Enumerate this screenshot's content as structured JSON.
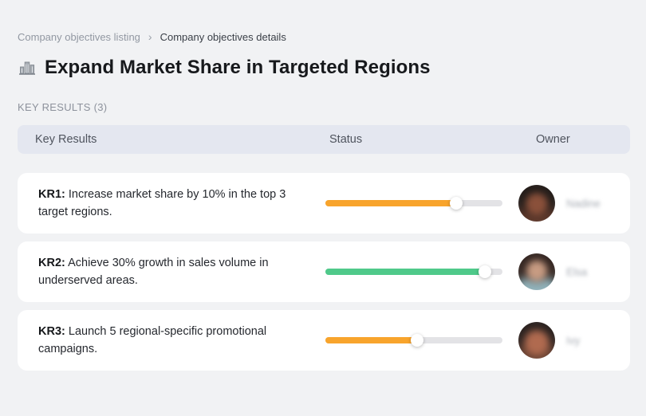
{
  "breadcrumb": {
    "separator": "›",
    "items": [
      {
        "label": "Company objectives listing"
      },
      {
        "label": "Company objectives details"
      }
    ]
  },
  "header": {
    "icon": "buildings-icon",
    "title": "Expand Market Share in Targeted Regions"
  },
  "section": {
    "label": "KEY RESULTS (3)"
  },
  "table": {
    "columns": [
      "Key Results",
      "Status",
      "Owner"
    ],
    "rows": [
      {
        "kr_label": "KR1:",
        "kr_text": "Increase market share by 10% in the top 3 target regions.",
        "progress_percent": 74,
        "progress_color": "#F8A42C",
        "owner_name": "Nadine"
      },
      {
        "kr_label": "KR2:",
        "kr_text": "Achieve 30% growth in sales volume in underserved areas.",
        "progress_percent": 90,
        "progress_color": "#4FC98A",
        "owner_name": "Elsa"
      },
      {
        "kr_label": "KR3:",
        "kr_text": "Launch 5 regional-specific promotional campaigns.",
        "progress_percent": 52,
        "progress_color": "#F8A42C",
        "owner_name": "Ivy"
      }
    ]
  },
  "colors": {
    "page_background": "#f1f2f4",
    "card_background": "#ffffff",
    "table_header_background": "#e4e7f0",
    "progress_track": "#e3e3e6",
    "progress_orange": "#F8A42C",
    "progress_green": "#4FC98A"
  }
}
